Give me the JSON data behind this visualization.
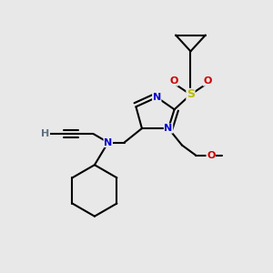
{
  "background_color": "#e8e8e8",
  "atom_colors": {
    "N": "#0000cc",
    "O": "#cc0000",
    "S": "#bbbb00",
    "C": "#000000",
    "H": "#607080"
  },
  "bond_color": "#000000",
  "bond_width": 1.5
}
